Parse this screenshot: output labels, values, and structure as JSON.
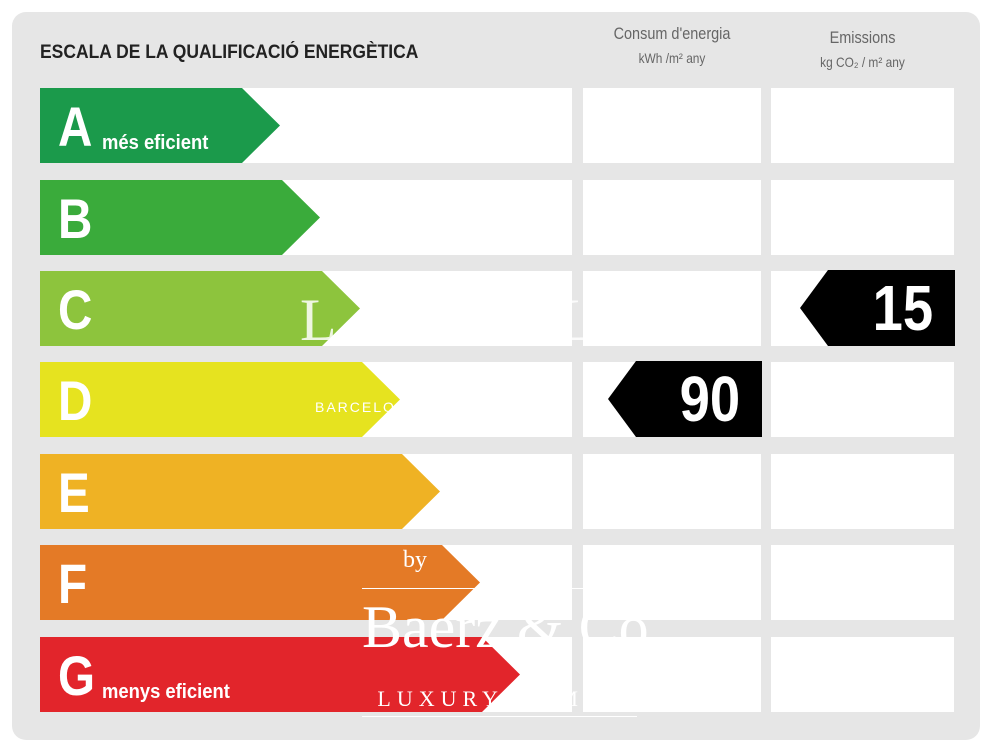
{
  "title": "ESCALA DE LA QUALIFICACIÓ ENERGÈTICA",
  "columns": {
    "energy": {
      "label": "Consum d'energia",
      "unit": "kWh /m² any"
    },
    "emissions": {
      "label": "Emissions",
      "unit": "kg CO₂ / m² any"
    }
  },
  "ratings": [
    {
      "letter": "A",
      "sub": "més eficient",
      "color": "#1b9a4b"
    },
    {
      "letter": "B",
      "sub": "",
      "color": "#3aab3b"
    },
    {
      "letter": "C",
      "sub": "",
      "color": "#8dc43d"
    },
    {
      "letter": "D",
      "sub": "",
      "color": "#e6e31f"
    },
    {
      "letter": "E",
      "sub": "",
      "color": "#efb224"
    },
    {
      "letter": "F",
      "sub": "",
      "color": "#e47a26"
    },
    {
      "letter": "G",
      "sub": "menys eficient",
      "color": "#e2252b"
    }
  ],
  "energy_rating": {
    "letter": "D",
    "value": "90"
  },
  "emissions_rating": {
    "letter": "C",
    "value": "15"
  },
  "watermarks": {
    "top_mark": "L A S U A L",
    "top_sub": "BARCELONA ... EXPERTS",
    "by": "by",
    "brand": "Baerz & Co",
    "tagline": "LUXURY HOMES"
  }
}
